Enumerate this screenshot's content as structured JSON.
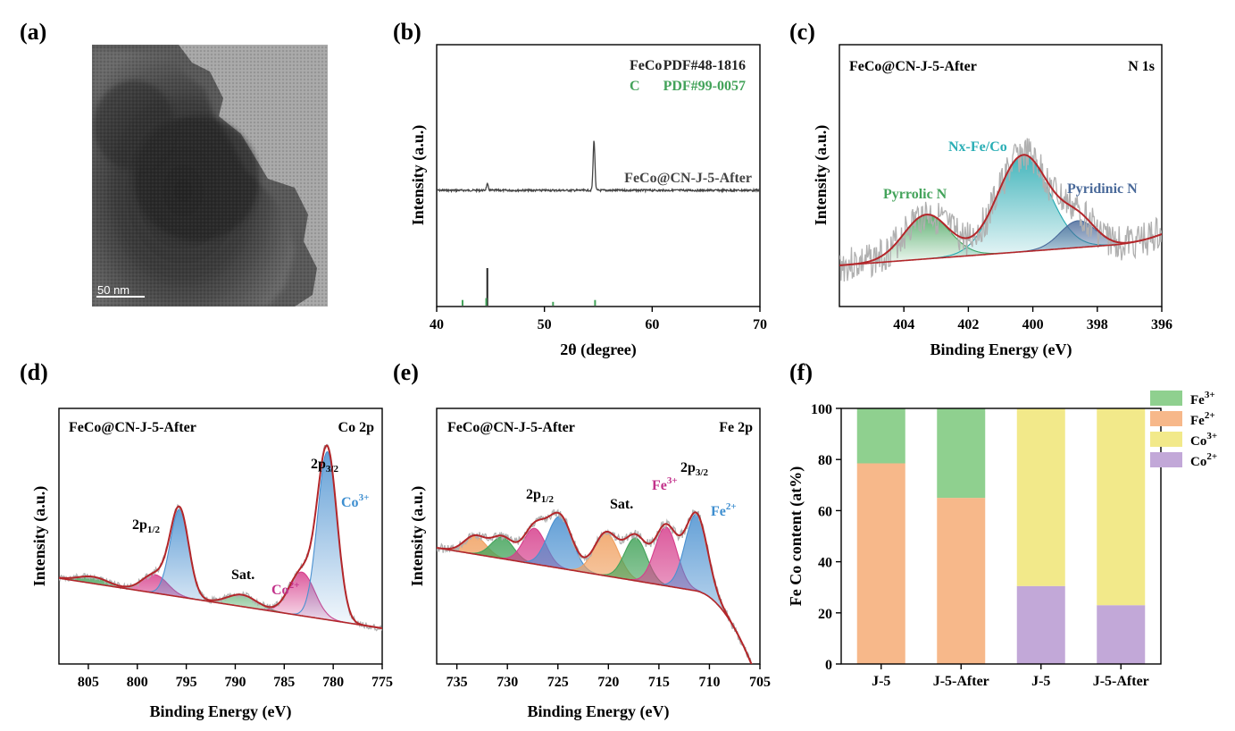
{
  "panel_labels": [
    "(a)",
    "(b)",
    "(c)",
    "(d)",
    "(e)",
    "(f)"
  ],
  "panel_a": {
    "scale_bar": "50  nm"
  },
  "chart_data": [
    {
      "id": "b",
      "type": "line",
      "xlabel": "2θ (degree)",
      "ylabel": "Intensity (a.u.)",
      "xlim": [
        40,
        70
      ],
      "xticks": [
        40,
        50,
        60,
        70
      ],
      "legend": [
        {
          "name": "FeCo",
          "ref": "PDF#48-1816",
          "color": "#222222"
        },
        {
          "name": "C",
          "ref": "PDF#99-0057",
          "color": "#43a35a"
        }
      ],
      "series_label": "FeCo@CN-J-5-After",
      "pattern_peaks": [
        {
          "x": 44.7,
          "height": 0.12
        },
        {
          "x": 54.6,
          "height": 1.0
        }
      ],
      "ref_lines_feco": [
        {
          "x": 44.7,
          "h": 1.0
        }
      ],
      "ref_lines_c": [
        {
          "x": 42.4,
          "h": 0.15
        },
        {
          "x": 44.6,
          "h": 0.2
        },
        {
          "x": 50.8,
          "h": 0.1
        },
        {
          "x": 54.7,
          "h": 0.15
        }
      ]
    },
    {
      "id": "c",
      "type": "xps",
      "title_left": "FeCo@CN-J-5-After",
      "title_right": "N 1s",
      "xlabel": "Binding Energy (eV)",
      "ylabel": "Intensity (a.u.)",
      "xlim": [
        406,
        396
      ],
      "xticks": [
        404,
        402,
        400,
        398,
        396
      ],
      "components": [
        {
          "name": "Pyrrolic N",
          "center": 403.3,
          "height": 0.33,
          "sigma": 0.7,
          "color": "#43a35a"
        },
        {
          "name": "Nx-Fe/Co",
          "center": 400.3,
          "height": 0.72,
          "sigma": 0.8,
          "color": "#23a8b0"
        },
        {
          "name": "Pyridinic N",
          "center": 398.6,
          "height": 0.2,
          "sigma": 0.55,
          "color": "#4a6a9a"
        }
      ],
      "colors": {
        "label_pyrrolic": "#43a35a",
        "label_nx": "#2aaeb5",
        "label_pyridinic": "#4a6a9a"
      }
    },
    {
      "id": "d",
      "type": "xps",
      "title_left": "FeCo@CN-J-5-After",
      "title_right": "Co 2p",
      "xlabel": "Binding Energy (eV)",
      "ylabel": "Intensity (a.u.)",
      "xlim": [
        808,
        775
      ],
      "xticks": [
        805,
        800,
        795,
        790,
        785,
        780,
        775
      ],
      "annotations": {
        "p12": "2p",
        "p12_sub": "1/2",
        "p32": "2p",
        "p32_sub": "3/2",
        "sat": "Sat.",
        "co2": "Co",
        "co2_sup": "2+",
        "co3": "Co",
        "co3_sup": "3+"
      },
      "components": [
        {
          "center": 804.5,
          "height": 0.04,
          "sigma": 1.5,
          "color": "#43a35a"
        },
        {
          "center": 798.2,
          "height": 0.11,
          "sigma": 1.3,
          "color": "#d63f8c"
        },
        {
          "center": 795.7,
          "height": 0.52,
          "sigma": 0.95,
          "color": "#4a90d0"
        },
        {
          "center": 789.3,
          "height": 0.07,
          "sigma": 1.5,
          "color": "#43a35a"
        },
        {
          "center": 783.2,
          "height": 0.26,
          "sigma": 1.3,
          "color": "#d63f8c"
        },
        {
          "center": 780.6,
          "height": 1.0,
          "sigma": 1.0,
          "color": "#4a90d0"
        }
      ],
      "colors": {
        "co2_label": "#c2318a",
        "co3_label": "#3d8ed0"
      }
    },
    {
      "id": "e",
      "type": "xps",
      "title_left": "FeCo@CN-J-5-After",
      "title_right": "Fe 2p",
      "xlabel": "Binding Energy (eV)",
      "ylabel": "Intensity (a.u.)",
      "xlim": [
        737,
        705
      ],
      "xticks": [
        735,
        730,
        725,
        720,
        715,
        710,
        705
      ],
      "annotations": {
        "p12": "2p",
        "p12_sub": "1/2",
        "p32": "2p",
        "p32_sub": "3/2",
        "sat": "Sat.",
        "fe3": "Fe",
        "fe3_sup": "3+",
        "fe2": "Fe",
        "fe2_sup": "2+"
      },
      "components": [
        {
          "center": 733.2,
          "height": 0.1,
          "sigma": 1.1,
          "color": "#f0a060"
        },
        {
          "center": 730.5,
          "height": 0.12,
          "sigma": 1.1,
          "color": "#43a35a"
        },
        {
          "center": 727.3,
          "height": 0.2,
          "sigma": 1.1,
          "color": "#d63f8c"
        },
        {
          "center": 724.8,
          "height": 0.29,
          "sigma": 1.2,
          "color": "#4a90d0"
        },
        {
          "center": 720.2,
          "height": 0.24,
          "sigma": 1.2,
          "color": "#f0a060"
        },
        {
          "center": 717.3,
          "height": 0.24,
          "sigma": 1.1,
          "color": "#43a35a"
        },
        {
          "center": 714.3,
          "height": 0.33,
          "sigma": 1.1,
          "color": "#d63f8c"
        },
        {
          "center": 711.3,
          "height": 0.43,
          "sigma": 1.1,
          "color": "#4a90d0"
        }
      ],
      "colors": {
        "fe3_label": "#c2318a",
        "fe2_label": "#3d8ed0"
      }
    },
    {
      "id": "f",
      "type": "stacked-bar",
      "ylabel": "Fe Co content (at%)",
      "ylim": [
        0,
        100
      ],
      "yticks": [
        0,
        20,
        40,
        60,
        80,
        100
      ],
      "categories": [
        "J-5",
        "J-5-After",
        "J-5",
        "J-5-After"
      ],
      "series": [
        {
          "name": "Fe",
          "sup": "3+",
          "color": "#8fd08f",
          "values": [
            21.5,
            35,
            0,
            0
          ]
        },
        {
          "name": "Fe",
          "sup": "2+",
          "color": "#f7b88a",
          "values": [
            78.5,
            65,
            0,
            0
          ]
        },
        {
          "name": "Co",
          "sup": "3+",
          "color": "#f2e98a",
          "values": [
            0,
            0,
            69.5,
            77
          ]
        },
        {
          "name": "Co",
          "sup": "2+",
          "color": "#c2a8d8",
          "values": [
            0,
            0,
            30.5,
            23
          ]
        }
      ],
      "legend_order": [
        0,
        1,
        2,
        3
      ]
    }
  ]
}
